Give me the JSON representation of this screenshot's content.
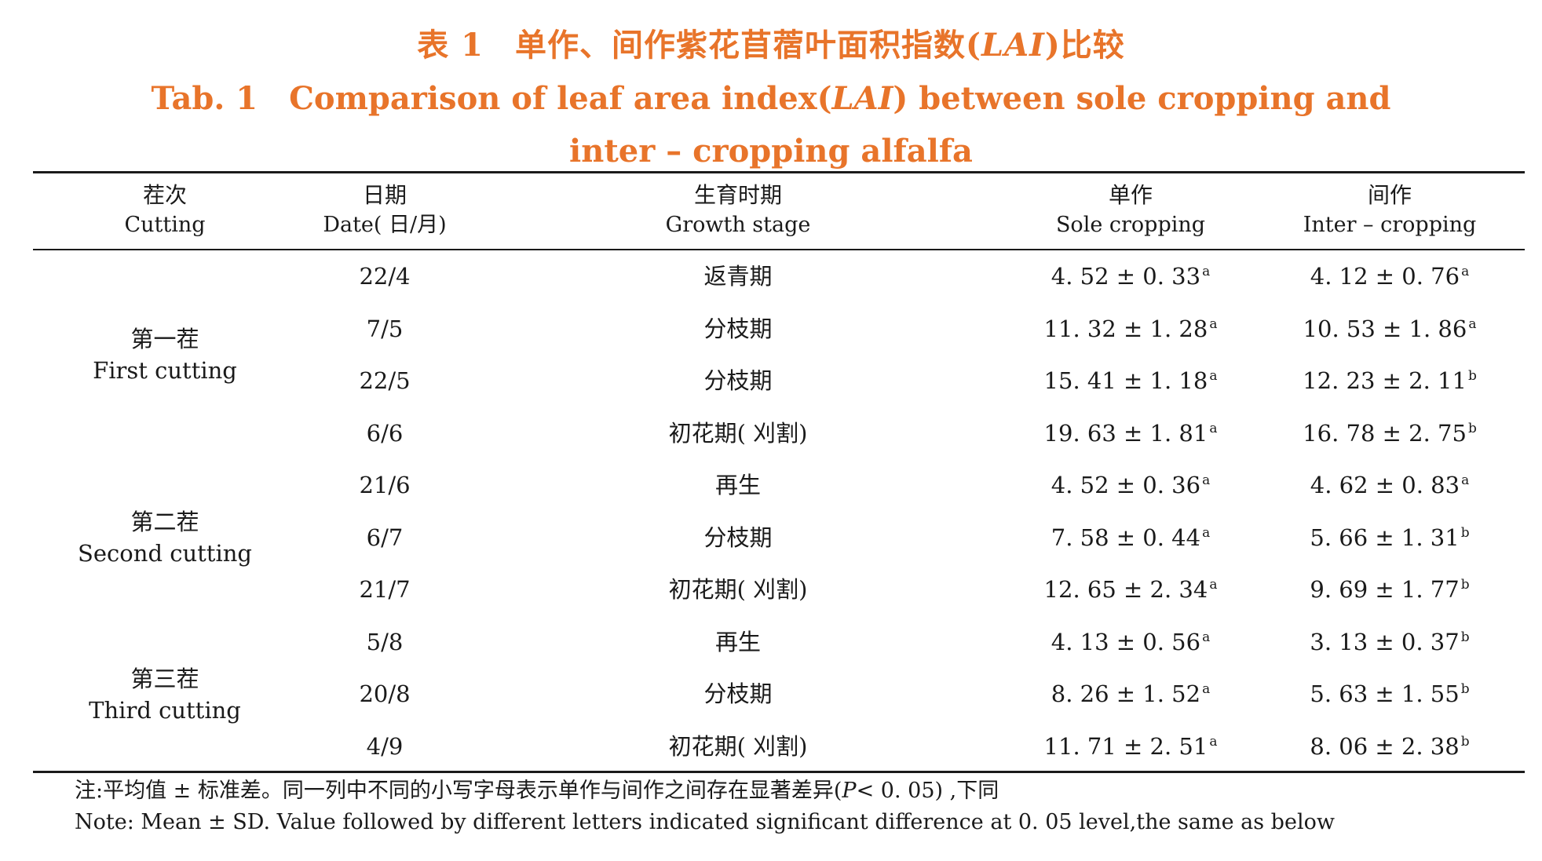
{
  "title": {
    "cn_prefix": "表 1",
    "cn_main_a": "单作、间作紫花苜蓿叶面积指数(",
    "cn_italic": "LAI",
    "cn_main_b": ")比较",
    "en_prefix": "Tab. 1",
    "en_main_a": "Comparison of leaf area index(",
    "en_italic": "LAI",
    "en_main_b": ") between sole cropping and",
    "en_line2": "inter – cropping alfalfa"
  },
  "headers": [
    {
      "cn": "茬次",
      "en": "Cutting"
    },
    {
      "cn": "日期",
      "en": "Date( 日/月)"
    },
    {
      "cn": "生育时期",
      "en": "Growth stage"
    },
    {
      "cn": "单作",
      "en": "Sole cropping"
    },
    {
      "cn": "间作",
      "en": "Inter – cropping"
    }
  ],
  "cuttings": [
    {
      "cn": "第一茬",
      "en": "First cutting"
    },
    {
      "cn": "第二茬",
      "en": "Second cutting"
    },
    {
      "cn": "第三茬",
      "en": "Third cutting"
    }
  ],
  "rows": [
    {
      "date": "22/4",
      "stage": "返青期",
      "sole": "4. 52 ± 0. 33",
      "sole_sig": "a",
      "inter": "4. 12 ± 0. 76",
      "inter_sig": "a"
    },
    {
      "date": "7/5",
      "stage": "分枝期",
      "sole": "11. 32 ± 1. 28",
      "sole_sig": "a",
      "inter": "10. 53 ± 1. 86",
      "inter_sig": "a"
    },
    {
      "date": "22/5",
      "stage": "分枝期",
      "sole": "15. 41 ± 1. 18",
      "sole_sig": "a",
      "inter": "12. 23 ± 2. 11",
      "inter_sig": "b"
    },
    {
      "date": "6/6",
      "stage": "初花期( 刈割)",
      "sole": "19. 63 ± 1. 81",
      "sole_sig": "a",
      "inter": "16. 78 ± 2. 75",
      "inter_sig": "b"
    },
    {
      "date": "21/6",
      "stage": "再生",
      "sole": "4. 52 ± 0. 36",
      "sole_sig": "a",
      "inter": "4. 62 ± 0. 83",
      "inter_sig": "a"
    },
    {
      "date": "6/7",
      "stage": "分枝期",
      "sole": "7. 58 ± 0. 44",
      "sole_sig": "a",
      "inter": "5. 66 ± 1. 31",
      "inter_sig": "b"
    },
    {
      "date": "21/7",
      "stage": "初花期( 刈割)",
      "sole": "12. 65 ± 2. 34",
      "sole_sig": "a",
      "inter": "9. 69 ± 1. 77",
      "inter_sig": "b"
    },
    {
      "date": "5/8",
      "stage": "再生",
      "sole": "4. 13 ± 0. 56",
      "sole_sig": "a",
      "inter": "3. 13 ± 0. 37",
      "inter_sig": "b"
    },
    {
      "date": "20/8",
      "stage": "分枝期",
      "sole": "8. 26 ± 1. 52",
      "sole_sig": "a",
      "inter": "5. 63 ± 1. 55",
      "inter_sig": "b"
    },
    {
      "date": "4/9",
      "stage": "初花期( 刈割)",
      "sole": "11. 71 ± 2. 51",
      "sole_sig": "a",
      "inter": "8. 06 ± 2. 38",
      "inter_sig": "b"
    }
  ],
  "notes": {
    "cn_a": "注:平均值 ± 标准差。同一列中不同的小写字母表示单作与间作之间存在显著差异(",
    "cn_italic": "P",
    "cn_b": "< 0. 05) ,下同",
    "en": "Note: Mean ± SD. Value followed by different letters indicated significant difference at 0. 05 level,the same as below"
  }
}
